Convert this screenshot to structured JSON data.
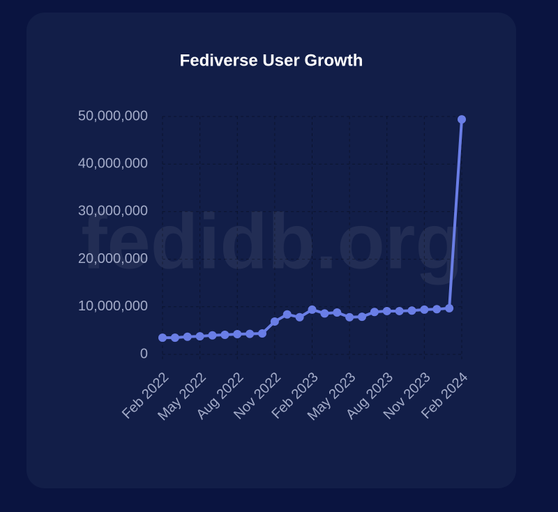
{
  "watermark": "fedidb.org",
  "chart_data": {
    "type": "line",
    "title": "Fediverse User Growth",
    "categories": [
      "Feb 2022",
      null,
      null,
      "May 2022",
      null,
      null,
      "Aug 2022",
      null,
      null,
      "Nov 2022",
      null,
      null,
      "Feb 2023",
      null,
      null,
      "May 2023",
      null,
      null,
      "Aug 2023",
      null,
      null,
      "Nov 2023",
      null,
      null,
      "Feb 2024"
    ],
    "values": [
      3500000,
      3500000,
      3700000,
      3800000,
      4000000,
      4100000,
      4250000,
      4300000,
      4400000,
      6900000,
      8400000,
      7800000,
      9400000,
      8600000,
      8800000,
      7800000,
      7900000,
      8900000,
      9100000,
      9100000,
      9200000,
      9400000,
      9500000,
      9700000,
      49400000
    ],
    "color": "#6a7ee6",
    "ylim": [
      0,
      50000000
    ],
    "yticks": [
      0,
      {
        "value": 10000000,
        "label": "10,000,000"
      },
      {
        "value": 20000000,
        "label": "20,000,000"
      },
      {
        "value": 30000000,
        "label": "30,000,000"
      },
      {
        "value": 40000000,
        "label": "40,000,000"
      },
      {
        "value": 50000000,
        "label": "50,000,000"
      }
    ],
    "grid": true
  }
}
